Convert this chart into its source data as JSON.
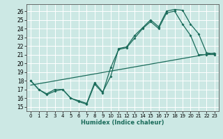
{
  "xlabel": "Humidex (Indice chaleur)",
  "bg_color": "#cce8e4",
  "line_color": "#1a6b5a",
  "grid_color": "#ffffff",
  "xlim": [
    -0.5,
    23.5
  ],
  "ylim": [
    14.5,
    26.8
  ],
  "xticks": [
    0,
    1,
    2,
    3,
    4,
    5,
    6,
    7,
    8,
    9,
    10,
    11,
    12,
    13,
    14,
    15,
    16,
    17,
    18,
    19,
    20,
    21,
    22,
    23
  ],
  "yticks": [
    15,
    16,
    17,
    18,
    19,
    20,
    21,
    22,
    23,
    24,
    25,
    26
  ],
  "line1_x": [
    0,
    1,
    2,
    3,
    4,
    5,
    6,
    7,
    8,
    9,
    10,
    11,
    12,
    13,
    14,
    15,
    16,
    17,
    18,
    19,
    20,
    21,
    22,
    23
  ],
  "line1_y": [
    18,
    17,
    16.5,
    17,
    17,
    16,
    15.7,
    15.4,
    17.8,
    16.7,
    18.5,
    21.7,
    21.9,
    23.2,
    24.1,
    25.0,
    24.2,
    26.0,
    26.2,
    26.1,
    24.5,
    23.4,
    21.2,
    21.1
  ],
  "line2_x": [
    0,
    1,
    2,
    3,
    4,
    5,
    6,
    7,
    8,
    9,
    10,
    11,
    12,
    13,
    14,
    15,
    16,
    17,
    18,
    19,
    20,
    21,
    22,
    23
  ],
  "line2_y": [
    18,
    17,
    16.4,
    16.8,
    17,
    16,
    15.6,
    15.3,
    17.6,
    16.6,
    19.5,
    21.6,
    21.8,
    22.9,
    24.0,
    24.8,
    24.0,
    25.8,
    26.0,
    24.5,
    23.2,
    21.0,
    21.0,
    21.0
  ],
  "line3_x": [
    0,
    23
  ],
  "line3_y": [
    17.5,
    21.2
  ]
}
